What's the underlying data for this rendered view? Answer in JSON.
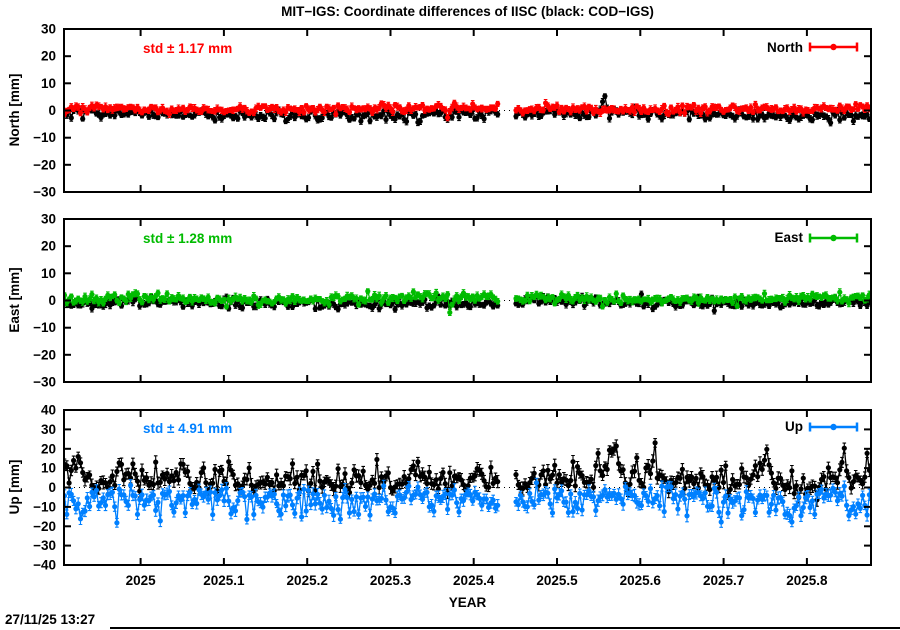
{
  "meta": {
    "timestamp": "27/11/25 13:27"
  },
  "title": "MIT−IGS: Coordinate differences of IISC (black: COD−IGS)",
  "x_axis": {
    "label": "YEAR",
    "range": [
      2024.908,
      2025.877
    ],
    "ticks": {
      "values": [
        2025,
        2025.1,
        2025.2,
        2025.3,
        2025.4,
        2025.5,
        2025.6,
        2025.7,
        2025.8
      ],
      "labels": [
        "2025",
        "2025.1",
        "2025.2",
        "2025.3",
        "2025.4",
        "2025.5",
        "2025.6",
        "2025.7",
        "2025.8"
      ]
    }
  },
  "annotations": {
    "data_gap": [
      2025.43,
      2025.449
    ]
  },
  "chart_data": [
    {
      "type": "scatter",
      "panel": "north",
      "ylabel": "North [mm]",
      "std_label": "std ± 1.17 mm",
      "std_mm": 1.17,
      "legend_label": "North",
      "accent_color": "#ff0000",
      "ylim": [
        -30,
        30
      ],
      "yticks": {
        "values": [
          -30,
          -20,
          -10,
          0,
          10,
          20,
          30
        ],
        "labels": [
          "−30",
          "−20",
          "−10",
          "0",
          "10",
          "20",
          "30"
        ]
      },
      "series": [
        {
          "name": "COD−IGS",
          "color": "#000000",
          "approx_mean_mm": -1.4,
          "approx_std_mm": 1.0,
          "gen": {
            "seed": 101,
            "mean": -1.4,
            "std": 1.0,
            "skew_pos": 1.0,
            "skew_neg": 1.0,
            "clamp": [
              -4.8,
              7.5
            ],
            "err_base": 0.8,
            "err_var": 0.5,
            "wander_amp": 0.5,
            "wander_period": 0.55,
            "wander_phase": 0.8,
            "spikes": [
              {
                "t": 2025.557,
                "amp": 7,
                "w": 0.003
              },
              {
                "t": 2025.594,
                "amp": 2.5,
                "w": 0.003
              }
            ]
          }
        },
        {
          "name": "MIT−IGS",
          "color": "#ff0000",
          "approx_mean_mm": 0.55,
          "approx_std_mm": 1.17,
          "gen": {
            "seed": 202,
            "mean": 0.55,
            "std": 0.8,
            "skew_pos": 1.0,
            "skew_neg": 1.0,
            "clamp": [
              -5,
              3.6
            ],
            "err_base": 0.8,
            "err_var": 0.5,
            "wander_amp": 0.35,
            "wander_period": 0.5,
            "wander_phase": 2.1,
            "spikes": [
              {
                "t": 2024.909,
                "amp": -4,
                "w": 0.0015
              },
              {
                "t": 2025.368,
                "amp": -4.2,
                "w": 0.002
              }
            ]
          }
        }
      ]
    },
    {
      "type": "scatter",
      "panel": "east",
      "ylabel": "East [mm]",
      "std_label": "std ± 1.28 mm",
      "std_mm": 1.28,
      "legend_label": "East",
      "accent_color": "#00bb00",
      "ylim": [
        -30,
        30
      ],
      "yticks": {
        "values": [
          -30,
          -20,
          -10,
          0,
          10,
          20,
          30
        ],
        "labels": [
          "−30",
          "−20",
          "−10",
          "0",
          "10",
          "20",
          "30"
        ]
      },
      "series": [
        {
          "name": "COD−IGS",
          "color": "#000000",
          "approx_mean_mm": -0.85,
          "approx_std_mm": 1.0,
          "gen": {
            "seed": 303,
            "mean": -0.85,
            "std": 1.0,
            "skew_pos": 1.0,
            "skew_neg": 1.0,
            "clamp": [
              -4.6,
              3.2
            ],
            "err_base": 0.8,
            "err_var": 0.5,
            "wander_amp": 0.4,
            "wander_period": 0.5,
            "wander_phase": 0.2,
            "spikes": [
              {
                "t": 2024.948,
                "amp": -2.2,
                "w": 0.006
              },
              {
                "t": 2025.05,
                "amp": -1.2,
                "w": 0.008
              }
            ]
          }
        },
        {
          "name": "MIT−IGS",
          "color": "#00bb00",
          "approx_mean_mm": 0.65,
          "approx_std_mm": 1.28,
          "gen": {
            "seed": 404,
            "mean": 0.65,
            "std": 0.9,
            "skew_pos": 1.0,
            "skew_neg": 1.0,
            "clamp": [
              -5,
              3.8
            ],
            "err_base": 0.8,
            "err_var": 0.5,
            "wander_amp": 0.3,
            "wander_period": 0.45,
            "wander_phase": 1.2,
            "spikes": [
              {
                "t": 2025.372,
                "amp": -4.6,
                "w": 0.0018
              },
              {
                "t": 2024.92,
                "amp": -1.5,
                "w": 0.004
              }
            ]
          }
        }
      ]
    },
    {
      "type": "scatter",
      "panel": "up",
      "ylabel": "Up [mm]",
      "std_label": "std ± 4.91 mm",
      "std_mm": 4.91,
      "legend_label": "Up",
      "accent_color": "#0080ff",
      "ylim": [
        -40,
        40
      ],
      "yticks": {
        "values": [
          -40,
          -30,
          -20,
          -10,
          0,
          10,
          20,
          30,
          40
        ],
        "labels": [
          "−40",
          "−30",
          "−20",
          "−10",
          "0",
          "10",
          "20",
          "30",
          "40"
        ]
      },
      "series": [
        {
          "name": "COD−IGS",
          "color": "#000000",
          "approx_mean_mm": 2.8,
          "approx_std_mm": 5.0,
          "gen": {
            "seed": 505,
            "mean": 2.8,
            "std": 3.4,
            "skew_pos": 1.5,
            "skew_neg": 0.8,
            "clamp": [
              -9,
              27
            ],
            "err_base": 2.0,
            "err_var": 1.4,
            "wander_amp": 1.2,
            "wander_period": 0.5,
            "wander_phase": 0.0,
            "spikes": [
              {
                "t": 2024.925,
                "amp": 12,
                "w": 0.008
              },
              {
                "t": 2025.05,
                "amp": 5,
                "w": 0.008
              },
              {
                "t": 2025.33,
                "amp": 6,
                "w": 0.009
              },
              {
                "t": 2025.405,
                "amp": 8,
                "w": 0.005
              },
              {
                "t": 2025.565,
                "amp": 15,
                "w": 0.01
              },
              {
                "t": 2025.615,
                "amp": 11,
                "w": 0.005
              },
              {
                "t": 2025.75,
                "amp": 13,
                "w": 0.008
              },
              {
                "t": 2025.845,
                "amp": 11,
                "w": 0.005
              },
              {
                "t": 2025.872,
                "amp": 9,
                "w": 0.004
              }
            ]
          }
        },
        {
          "name": "MIT−IGS",
          "color": "#0080ff",
          "approx_mean_mm": -4.8,
          "approx_std_mm": 4.91,
          "gen": {
            "seed": 606,
            "mean": -4.8,
            "std": 3.1,
            "skew_pos": 0.8,
            "skew_neg": 1.5,
            "clamp": [
              -27,
              4.2
            ],
            "err_base": 2.0,
            "err_var": 1.2,
            "wander_amp": 1.0,
            "wander_period": 0.6,
            "wander_phase": 1.5,
            "spikes": [
              {
                "t": 2024.93,
                "amp": -8,
                "w": 0.008
              },
              {
                "t": 2025.02,
                "amp": -6,
                "w": 0.005
              },
              {
                "t": 2025.3,
                "amp": -6,
                "w": 0.007
              },
              {
                "t": 2025.52,
                "amp": -4,
                "w": 0.005
              },
              {
                "t": 2025.7,
                "amp": -5,
                "w": 0.005
              },
              {
                "t": 2025.78,
                "amp": -9,
                "w": 0.007
              },
              {
                "t": 2025.86,
                "amp": -6,
                "w": 0.005
              }
            ]
          }
        }
      ]
    }
  ]
}
